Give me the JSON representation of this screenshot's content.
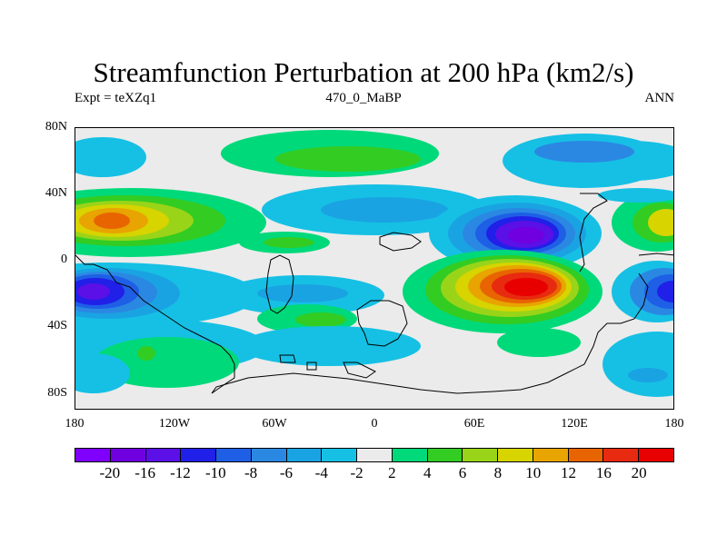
{
  "title": "Streamfunction Perturbation at 200 hPa (km2/s)",
  "left_label": "Expt = teXZq1",
  "center_label": "470_0_MaBP",
  "right_label": "ANN",
  "y_ticks": [
    "80N",
    "40N",
    "0",
    "40S",
    "80S"
  ],
  "x_ticks": [
    "180",
    "120W",
    "60W",
    "0",
    "60E",
    "120E",
    "180"
  ],
  "colorbar": {
    "labels": [
      "-20",
      "-16",
      "-12",
      "-10",
      "-8",
      "-6",
      "-4",
      "-2",
      "2",
      "4",
      "6",
      "8",
      "10",
      "12",
      "16",
      "20"
    ],
    "colors": [
      "#7f00ff",
      "#7000e0",
      "#5a10e6",
      "#2020e8",
      "#1e5fe6",
      "#2a88e3",
      "#1aa3e2",
      "#16c0e4",
      "#ebebeb",
      "#00d97a",
      "#33cc22",
      "#99d419",
      "#d7d400",
      "#e8a400",
      "#e86400",
      "#e82a10",
      "#e80000"
    ]
  },
  "colors": {
    "background": "#ebebeb",
    "outline": "#000000"
  }
}
